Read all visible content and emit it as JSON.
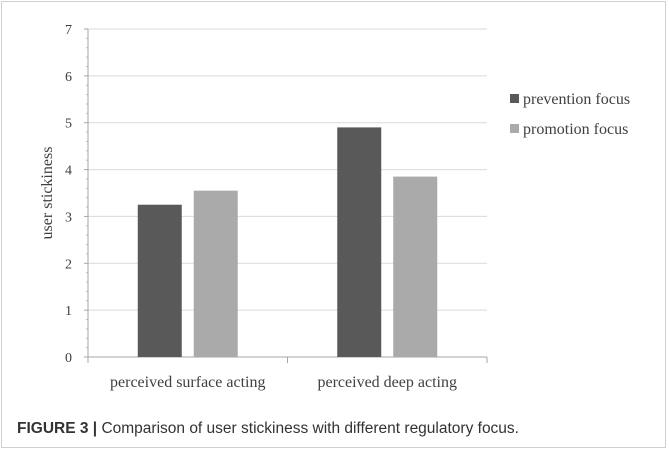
{
  "figure": {
    "caption_label": "FIGURE 3 |",
    "caption_text": " Comparison of user stickiness with different regulatory focus."
  },
  "chart_data": {
    "type": "bar",
    "categories": [
      "perceived surface acting",
      "perceived deep acting"
    ],
    "series": [
      {
        "name": "prevention focus",
        "color": "#595959",
        "values": [
          3.25,
          4.9
        ]
      },
      {
        "name": "promotion focus",
        "color": "#aaaaaa",
        "values": [
          3.55,
          3.85
        ]
      }
    ],
    "xlabel": "",
    "ylabel": "user stickiness",
    "ylim": [
      0,
      7
    ],
    "yticks": [
      0,
      1,
      2,
      3,
      4,
      5,
      6,
      7
    ],
    "grid": true,
    "legend": "right"
  }
}
